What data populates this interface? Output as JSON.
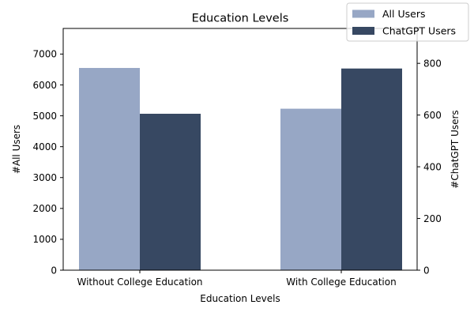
{
  "chart_data": {
    "type": "bar",
    "title": "Education Levels",
    "xlabel": "Education Levels",
    "ylabel": "#All Users",
    "y2label": "#ChatGPT Users",
    "categories": [
      "Without College Education",
      "With College Education"
    ],
    "series": [
      {
        "name": "All Users",
        "axis": "left",
        "color": "#97a7c5",
        "values": [
          6550,
          5230
        ]
      },
      {
        "name": "ChatGPT Users",
        "axis": "right",
        "color": "#374862",
        "values": [
          605,
          780
        ]
      }
    ],
    "ylim": [
      0,
      7830
    ],
    "y2lim": [
      0,
      935
    ],
    "yticks": [
      0,
      1000,
      2000,
      3000,
      4000,
      5000,
      6000,
      7000
    ],
    "y2ticks": [
      0,
      200,
      400,
      600,
      800
    ],
    "legend": "top-right",
    "grid": false
  }
}
